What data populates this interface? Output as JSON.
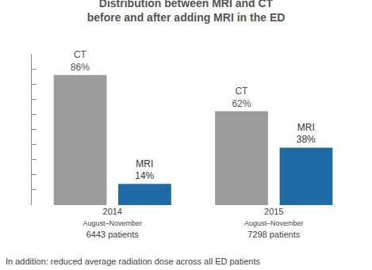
{
  "chart_data": {
    "type": "bar",
    "title": "Distribution between MRI and CT\nbefore and after adding MRI in the ED",
    "categories": [
      "2014\nAugust–November\n6443 patients",
      "2015\nAugust–November\n7298 patients"
    ],
    "series": [
      {
        "name": "CT",
        "color": "#9b9c9e",
        "values": [
          86,
          62
        ],
        "value_labels": [
          "86%",
          "62%"
        ]
      },
      {
        "name": "MRI",
        "color": "#1f6aa5",
        "values": [
          14,
          38
        ],
        "value_labels": [
          "14%",
          "38%"
        ]
      }
    ],
    "ylim": [
      0,
      100
    ],
    "yticks": [
      0,
      10,
      20,
      30,
      40,
      50,
      60,
      70,
      80,
      90,
      100
    ],
    "grid": false,
    "data_labels": true,
    "tick_labels": "x",
    "annotations": [
      "In addition: reduced average radiation dose across all ED patients"
    ]
  }
}
